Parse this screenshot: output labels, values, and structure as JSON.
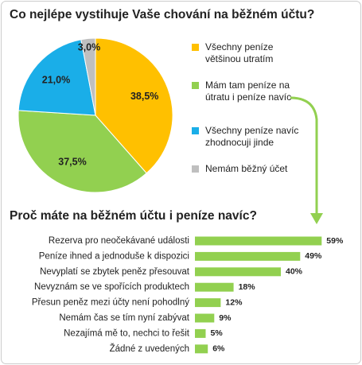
{
  "chart_data": [
    {
      "type": "pie",
      "title": "Co nejlépe vystihuje Vaše chování na běžném účtu?",
      "series": [
        {
          "name": "Všechny peníze většinou utratím",
          "color": "#ffc000"
        },
        {
          "name": "Mám tam peníze na útratu i peníze navíc",
          "color": "#92d050"
        },
        {
          "name": "Všechny peníze navíc zhodnocuji jinde",
          "color": "#1aaee8"
        },
        {
          "name": "Nemám běžný účet",
          "color": "#bfbfbf"
        }
      ],
      "values": [
        38.5,
        37.5,
        21.0,
        3.0
      ],
      "value_labels": [
        "38,5%",
        "37,5%",
        "21,0%",
        "3,0%"
      ]
    },
    {
      "type": "bar",
      "title": "Proč máte na běžném účtu i peníze navíc?",
      "categories": [
        "Rezerva pro neočekávané události",
        "Peníze ihned a jednoduše k dispozici",
        "Nevyplatí se zbytek peněz přesouvat",
        "Nevyznám se ve spořících produktech",
        "Přesun peněz mezi účty není pohodlný",
        "Nemám čas se tím nyní zabývat",
        "Nezajímá mě to, nechci to řešit",
        "Žádné z uvedených"
      ],
      "values": [
        59,
        49,
        40,
        18,
        12,
        9,
        5,
        6
      ],
      "value_labels": [
        "59%",
        "49%",
        "40%",
        "18%",
        "12%",
        "9%",
        "5%",
        "6%"
      ],
      "color": "#92d050"
    }
  ]
}
